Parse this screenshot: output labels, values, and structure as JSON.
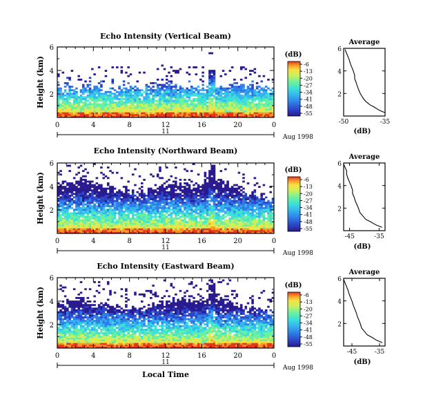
{
  "chart_data": [
    {
      "type": "heatmap",
      "title": "Echo Intensity (Vertical Beam)",
      "ylabel": "Height (km)",
      "xlim": [
        0,
        24
      ],
      "ylim": [
        0,
        6
      ],
      "xticks": [
        "0",
        "4",
        "8",
        "12",
        "16",
        "20",
        "0"
      ],
      "yticks": [
        "2",
        "4",
        "6"
      ],
      "day_label": "11",
      "month_label": "Aug 1998",
      "colorbar_unit": "(dB)",
      "colorbar_ticks": [
        "-6",
        "-13",
        "-20",
        "-27",
        "-34",
        "-41",
        "-48",
        "-55"
      ],
      "avg_title": "Average",
      "avg_xlabel": "(dB)",
      "avg_xticks": [
        "-50",
        "-35"
      ],
      "avg_xlim": [
        -50,
        -35
      ],
      "avg_ylim": [
        0,
        6
      ],
      "avg_yticks": [
        "2",
        "4",
        "6"
      ],
      "avg_profile": {
        "height": [
          0.3,
          0.5,
          0.8,
          1.0,
          1.3,
          1.6,
          2.0,
          2.3,
          2.6,
          3.0,
          3.3,
          3.6,
          4.0,
          4.3,
          4.6,
          5.0,
          5.3,
          5.6,
          5.9
        ],
        "db": [
          -35,
          -37,
          -39,
          -40.5,
          -42,
          -43,
          -44,
          -44.5,
          -45,
          -45.5,
          -46,
          -46,
          -46.5,
          -47,
          -47.5,
          -48,
          -48.5,
          -49,
          -49.5
        ]
      },
      "echo_top_km": [
        2.3,
        2.4,
        2.4,
        2.5,
        2.4,
        2.3,
        2.4,
        2.6,
        2.5,
        2.4,
        2.5,
        2.7,
        2.8,
        2.6,
        2.5,
        2.4,
        2.5,
        2.6,
        2.7,
        2.8,
        2.7,
        2.6,
        2.5,
        2.4
      ]
    },
    {
      "type": "heatmap",
      "title": "Echo Intensity (Northward Beam)",
      "ylabel": "Height (km)",
      "xlim": [
        0,
        24
      ],
      "ylim": [
        0,
        6
      ],
      "xticks": [
        "0",
        "4",
        "8",
        "12",
        "16",
        "20",
        "0"
      ],
      "yticks": [
        "2",
        "4",
        "6"
      ],
      "day_label": "11",
      "month_label": "Aug 1998",
      "colorbar_unit": "(dB)",
      "colorbar_ticks": [
        "-6",
        "-13",
        "-20",
        "-27",
        "-34",
        "-41",
        "-48",
        "-55"
      ],
      "avg_title": "Average",
      "avg_xlabel": "(dB)",
      "avg_xticks": [
        "-45",
        "-35"
      ],
      "avg_xlim": [
        -47,
        -33
      ],
      "avg_ylim": [
        0,
        6
      ],
      "avg_yticks": [
        "2",
        "4",
        "6"
      ],
      "avg_profile": {
        "height": [
          0.3,
          0.5,
          0.8,
          1.0,
          1.3,
          1.6,
          2.0,
          2.3,
          2.6,
          3.0,
          3.3,
          3.6,
          4.0,
          4.3,
          4.6,
          5.0,
          5.3,
          5.6,
          5.9
        ],
        "db": [
          -34,
          -36,
          -38,
          -39.5,
          -40.5,
          -41.5,
          -42,
          -42.5,
          -43,
          -43.5,
          -44,
          -44,
          -44.5,
          -45,
          -45.5,
          -46,
          -46,
          -46.5,
          -47
        ]
      },
      "echo_top_km": [
        4.2,
        4.4,
        4.6,
        4.4,
        4.2,
        4.0,
        3.8,
        3.6,
        3.5,
        3.6,
        3.8,
        4.0,
        4.3,
        4.4,
        4.2,
        4.0,
        4.3,
        4.5,
        4.3,
        4.0,
        3.6,
        3.4,
        3.2,
        3.0
      ]
    },
    {
      "type": "heatmap",
      "title": "Echo Intensity (Eastward Beam)",
      "ylabel": "Height (km)",
      "xlim": [
        0,
        24
      ],
      "ylim": [
        0,
        6
      ],
      "xticks": [
        "0",
        "4",
        "8",
        "12",
        "16",
        "20",
        "0"
      ],
      "yticks": [
        "2",
        "4",
        "6"
      ],
      "day_label": "11",
      "month_label": "Aug 1998",
      "x_axis_label": "Local Time",
      "colorbar_unit": "(dB)",
      "colorbar_ticks": [
        "-6",
        "-13",
        "-20",
        "-27",
        "-34",
        "-41",
        "-48",
        "-55"
      ],
      "avg_title": "Average",
      "avg_xlabel": "(dB)",
      "avg_xticks": [
        "-45",
        "-35"
      ],
      "avg_xlim": [
        -48,
        -33
      ],
      "avg_ylim": [
        0,
        6
      ],
      "avg_yticks": [
        "2",
        "4",
        "6"
      ],
      "avg_profile": {
        "height": [
          0.3,
          0.5,
          0.8,
          1.0,
          1.3,
          1.6,
          2.0,
          2.3,
          2.6,
          3.0,
          3.3,
          3.6,
          4.0,
          4.3,
          4.6,
          5.0,
          5.3,
          5.6,
          5.9
        ],
        "db": [
          -34,
          -36,
          -38,
          -39.5,
          -40.5,
          -41.5,
          -42,
          -42.5,
          -43,
          -43.5,
          -44,
          -44.5,
          -45,
          -45.5,
          -46,
          -46.5,
          -47,
          -47.5,
          -48
        ]
      },
      "echo_top_km": [
        3.8,
        4.0,
        4.2,
        4.0,
        3.8,
        3.6,
        3.5,
        3.4,
        3.3,
        3.4,
        3.6,
        3.8,
        4.0,
        4.2,
        4.1,
        4.0,
        4.2,
        4.3,
        4.1,
        3.8,
        3.5,
        3.3,
        3.2,
        3.0
      ]
    }
  ],
  "colors": {
    "colormap": [
      "#2a1a8f",
      "#2b46c9",
      "#2f7ee8",
      "#34b4f0",
      "#3ce0d8",
      "#6cf0a0",
      "#c8f060",
      "#f8e040",
      "#f89828",
      "#e83420"
    ]
  }
}
